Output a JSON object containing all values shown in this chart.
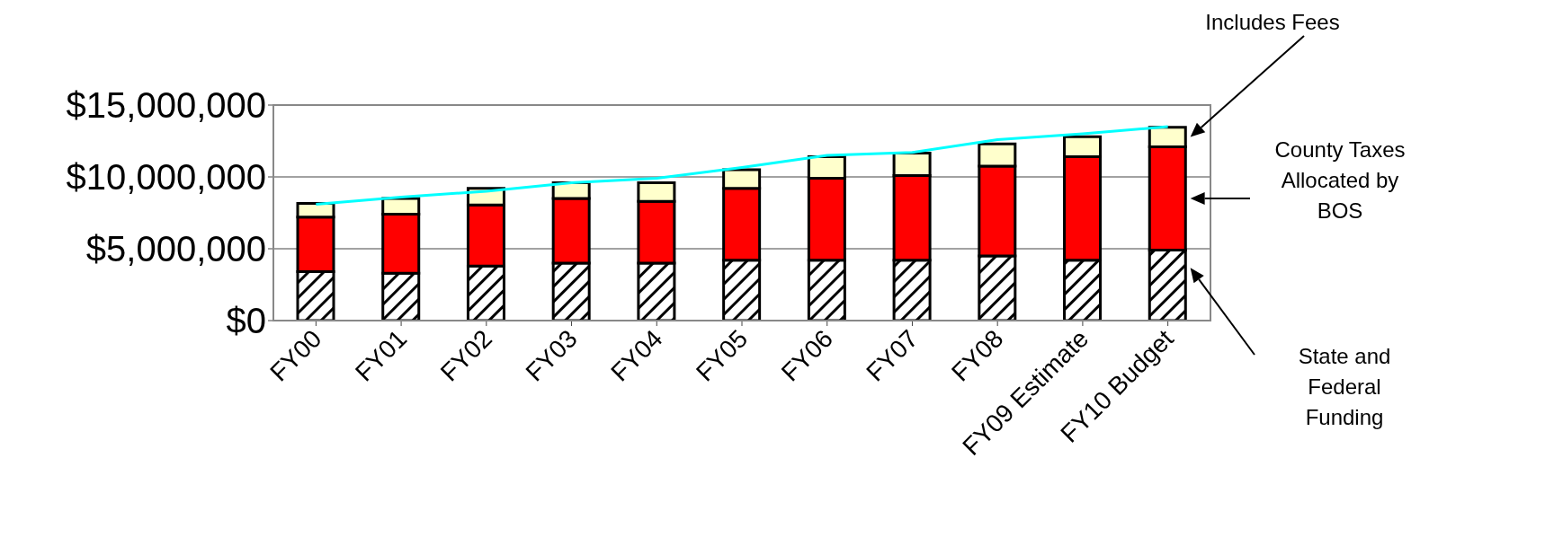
{
  "chart_data": {
    "type": "bar",
    "stacked": true,
    "categories": [
      "FY00",
      "FY01",
      "FY02",
      "FY03",
      "FY04",
      "FY05",
      "FY06",
      "FY07",
      "FY08",
      "FY09 Estimate",
      "FY10 Budget"
    ],
    "series": [
      {
        "name": "State and Federal Funding",
        "color": "#000000",
        "values": [
          3400000,
          3300000,
          3800000,
          4000000,
          4000000,
          4200000,
          4200000,
          4200000,
          4500000,
          4200000,
          4900000
        ]
      },
      {
        "name": "County Taxes Allocated by BOS",
        "color": "#ff0000",
        "values": [
          3800000,
          4100000,
          4250000,
          4500000,
          4300000,
          5000000,
          5700000,
          5900000,
          6250000,
          7200000,
          7200000
        ]
      },
      {
        "name": "Includes Fees",
        "color": "#ffffcc",
        "values": [
          950000,
          1100000,
          1150000,
          1100000,
          1300000,
          1300000,
          1500000,
          1550000,
          1550000,
          1400000,
          1350000
        ]
      },
      {
        "type": "line",
        "color": "#00ffff",
        "values": [
          8100000,
          8600000,
          9000000,
          9600000,
          9900000,
          10650000,
          11500000,
          11700000,
          12600000,
          13000000,
          13500000
        ]
      }
    ],
    "ylim": [
      0,
      15000000
    ],
    "yticks": [
      {
        "value": 0,
        "label": "$0"
      },
      {
        "value": 5000000,
        "label": "$5,000,000"
      },
      {
        "value": 10000000,
        "label": "$10,000,000"
      },
      {
        "value": 15000000,
        "label": "$15,000,000"
      }
    ],
    "grid": "y",
    "marker": "none"
  }
}
